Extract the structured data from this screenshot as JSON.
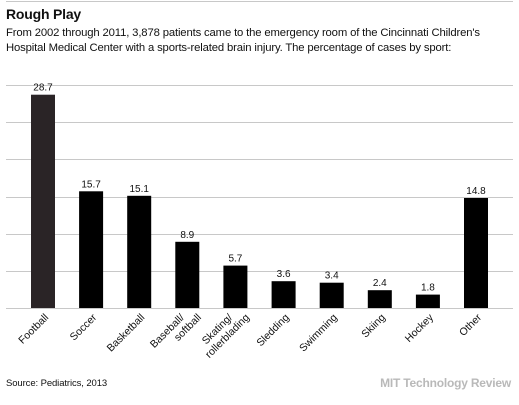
{
  "header": {
    "title": "Rough Play",
    "subtitle": "From 2002 through 2011, 3,878 patients came to the emergency room of the Cincinnati Children's Hospital Medical Center with a sports-related brain injury. The percentage of cases by sport:"
  },
  "footer": {
    "source": "Source: Pediatrics, 2013",
    "brand": "MIT Technology Review"
  },
  "chart_data": {
    "type": "bar",
    "categories": [
      [
        "Football"
      ],
      [
        "Soccer"
      ],
      [
        "Basketball"
      ],
      [
        "Baseball/",
        "softball"
      ],
      [
        "Skating/",
        "rollerblading"
      ],
      [
        "Sledding"
      ],
      [
        "Swimming"
      ],
      [
        "Skiing"
      ],
      [
        "Hockey"
      ],
      [
        "Other"
      ]
    ],
    "values": [
      28.7,
      15.7,
      15.1,
      8.9,
      5.7,
      3.6,
      3.4,
      2.4,
      1.8,
      14.8
    ],
    "ylim": [
      0,
      30
    ],
    "grid": true,
    "highlight_color": "#2a2426",
    "bar_color": "#000000",
    "grid_color": "#c8c8c8"
  }
}
